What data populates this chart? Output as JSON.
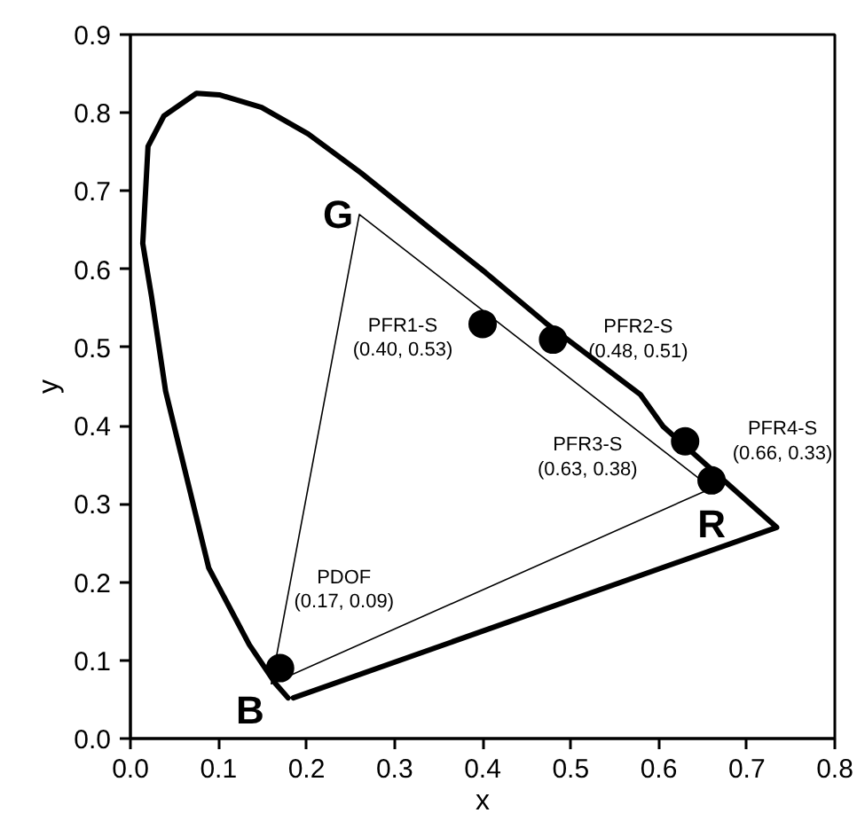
{
  "chart_data": {
    "type": "line",
    "xlabel": "x",
    "ylabel": "y",
    "xlim": [
      0,
      0.8
    ],
    "ylim": [
      0,
      0.9
    ],
    "xticks": [
      {
        "value": 0,
        "label": "0.0"
      },
      {
        "value": 0.1,
        "label": "0.1"
      },
      {
        "value": 0.2,
        "label": "0.2"
      },
      {
        "value": 0.3,
        "label": "0.3"
      },
      {
        "value": 0.4,
        "label": "0.4"
      },
      {
        "value": 0.5,
        "label": "0.5"
      },
      {
        "value": 0.6,
        "label": "0.6"
      },
      {
        "value": 0.7,
        "label": "0.7"
      },
      {
        "value": 0.8,
        "label": "0.8"
      }
    ],
    "yticks": [
      {
        "value": 0,
        "label": "0.0"
      },
      {
        "value": 0.1,
        "label": "0.1"
      },
      {
        "value": 0.2,
        "label": "0.2"
      },
      {
        "value": 0.3,
        "label": "0.3"
      },
      {
        "value": 0.4,
        "label": "0.4"
      },
      {
        "value": 0.5,
        "label": "0.5"
      },
      {
        "value": 0.6,
        "label": "0.6"
      },
      {
        "value": 0.7,
        "label": "0.7"
      },
      {
        "value": 0.8,
        "label": "0.8"
      },
      {
        "value": 0.9,
        "label": "0.9"
      }
    ],
    "grid": false,
    "series": [
      {
        "color": "#000000",
        "line_style": "solid",
        "marker": "none",
        "x": [
          0.185,
          0.734,
          0.673,
          0.605,
          0.579,
          0.472,
          0.403,
          0.337,
          0.262,
          0.202,
          0.149,
          0.101,
          0.075,
          0.038,
          0.02,
          0.014,
          0.024,
          0.04,
          0.089,
          0.135,
          0.165,
          0.179
        ],
        "values": [
          0.052,
          0.27,
          0.331,
          0.399,
          0.44,
          0.531,
          0.596,
          0.655,
          0.723,
          0.773,
          0.807,
          0.823,
          0.825,
          0.796,
          0.757,
          0.633,
          0.565,
          0.444,
          0.218,
          0.12,
          0.07,
          0.052
        ]
      },
      {
        "color": "#000000",
        "line_style": "solid",
        "marker": "none",
        "x": [
          0.21,
          0.26,
          0.66,
          0.16,
          0.215
        ],
        "values": [
          0.37,
          0.67,
          0.32,
          0.07,
          0.4
        ]
      },
      {
        "type": "scatter",
        "color": "#000000",
        "marker": "circle",
        "x": [
          0.17,
          0.4,
          0.48,
          0.63,
          0.66
        ],
        "values": [
          0.09,
          0.53,
          0.51,
          0.38,
          0.33
        ]
      }
    ],
    "annotations": [
      {
        "text": "PDOF\n(0.17, 0.09)",
        "x": 0.17,
        "y": 0.09
      },
      {
        "text": "PFR1-S\n(0.40, 0.53)",
        "x": 0.4,
        "y": 0.53
      },
      {
        "text": "PFR2-S\n(0.48, 0.51)",
        "x": 0.48,
        "y": 0.51
      },
      {
        "text": "PFR3-S\n(0.63, 0.38)",
        "x": 0.63,
        "y": 0.38
      },
      {
        "text": "PFR4-S\n(0.66, 0.33)",
        "x": 0.66,
        "y": 0.33
      },
      {
        "text": "G",
        "x": 0.26,
        "y": 0.67
      },
      {
        "text": "B",
        "x": 0.16,
        "y": 0.07
      },
      {
        "text": "R",
        "x": 0.66,
        "y": 0.32
      }
    ]
  }
}
